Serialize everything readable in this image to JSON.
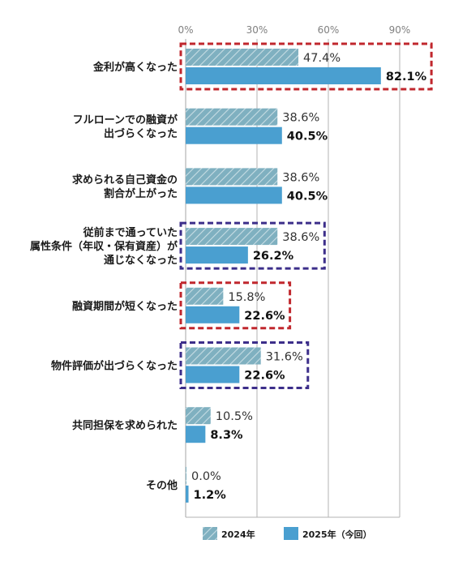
{
  "chart_data": {
    "type": "bar",
    "orientation": "horizontal",
    "categories": [
      [
        "金利が高くなった"
      ],
      [
        "フルローンでの融資が",
        "出づらくなった"
      ],
      [
        "求められる自己資金の",
        "割合が上がった"
      ],
      [
        "従前まで通っていた",
        "属性条件（年収・保有資産）が",
        "通じなくなった"
      ],
      [
        "融資期間が短くなった"
      ],
      [
        "物件評価が出づらくなった"
      ],
      [
        "共同担保を求められた"
      ],
      [
        "その他"
      ]
    ],
    "series": [
      {
        "name": "2024年",
        "values": [
          47.4,
          38.6,
          38.6,
          38.6,
          15.8,
          31.6,
          10.5,
          0.0
        ],
        "labels": [
          "47.4%",
          "38.6%",
          "38.6%",
          "38.6%",
          "15.8%",
          "31.6%",
          "10.5%",
          "0.0%"
        ],
        "color": "#7fb0c0",
        "pattern": "diagonal-hatch"
      },
      {
        "name": "2025年（今回）",
        "values": [
          82.1,
          40.5,
          40.5,
          26.2,
          22.6,
          22.6,
          8.3,
          1.2
        ],
        "labels": [
          "82.1%",
          "40.5%",
          "40.5%",
          "26.2%",
          "22.6%",
          "22.6%",
          "8.3%",
          "1.2%"
        ],
        "color": "#4a9fd0",
        "bold_labels": true
      }
    ],
    "xlim": [
      0,
      90
    ],
    "xticks": [
      0,
      30,
      60,
      90
    ],
    "xtick_labels": [
      "0%",
      "30%",
      "60%",
      "90%"
    ],
    "grid": true,
    "legend_position": "bottom",
    "highlights": [
      {
        "category_index": 0,
        "color": "#c0272d",
        "style": "dashed"
      },
      {
        "category_index": 3,
        "color": "#3c2e8a",
        "style": "dashed"
      },
      {
        "category_index": 4,
        "color": "#c0272d",
        "style": "dashed"
      },
      {
        "category_index": 5,
        "color": "#3c2e8a",
        "style": "dashed"
      }
    ]
  }
}
